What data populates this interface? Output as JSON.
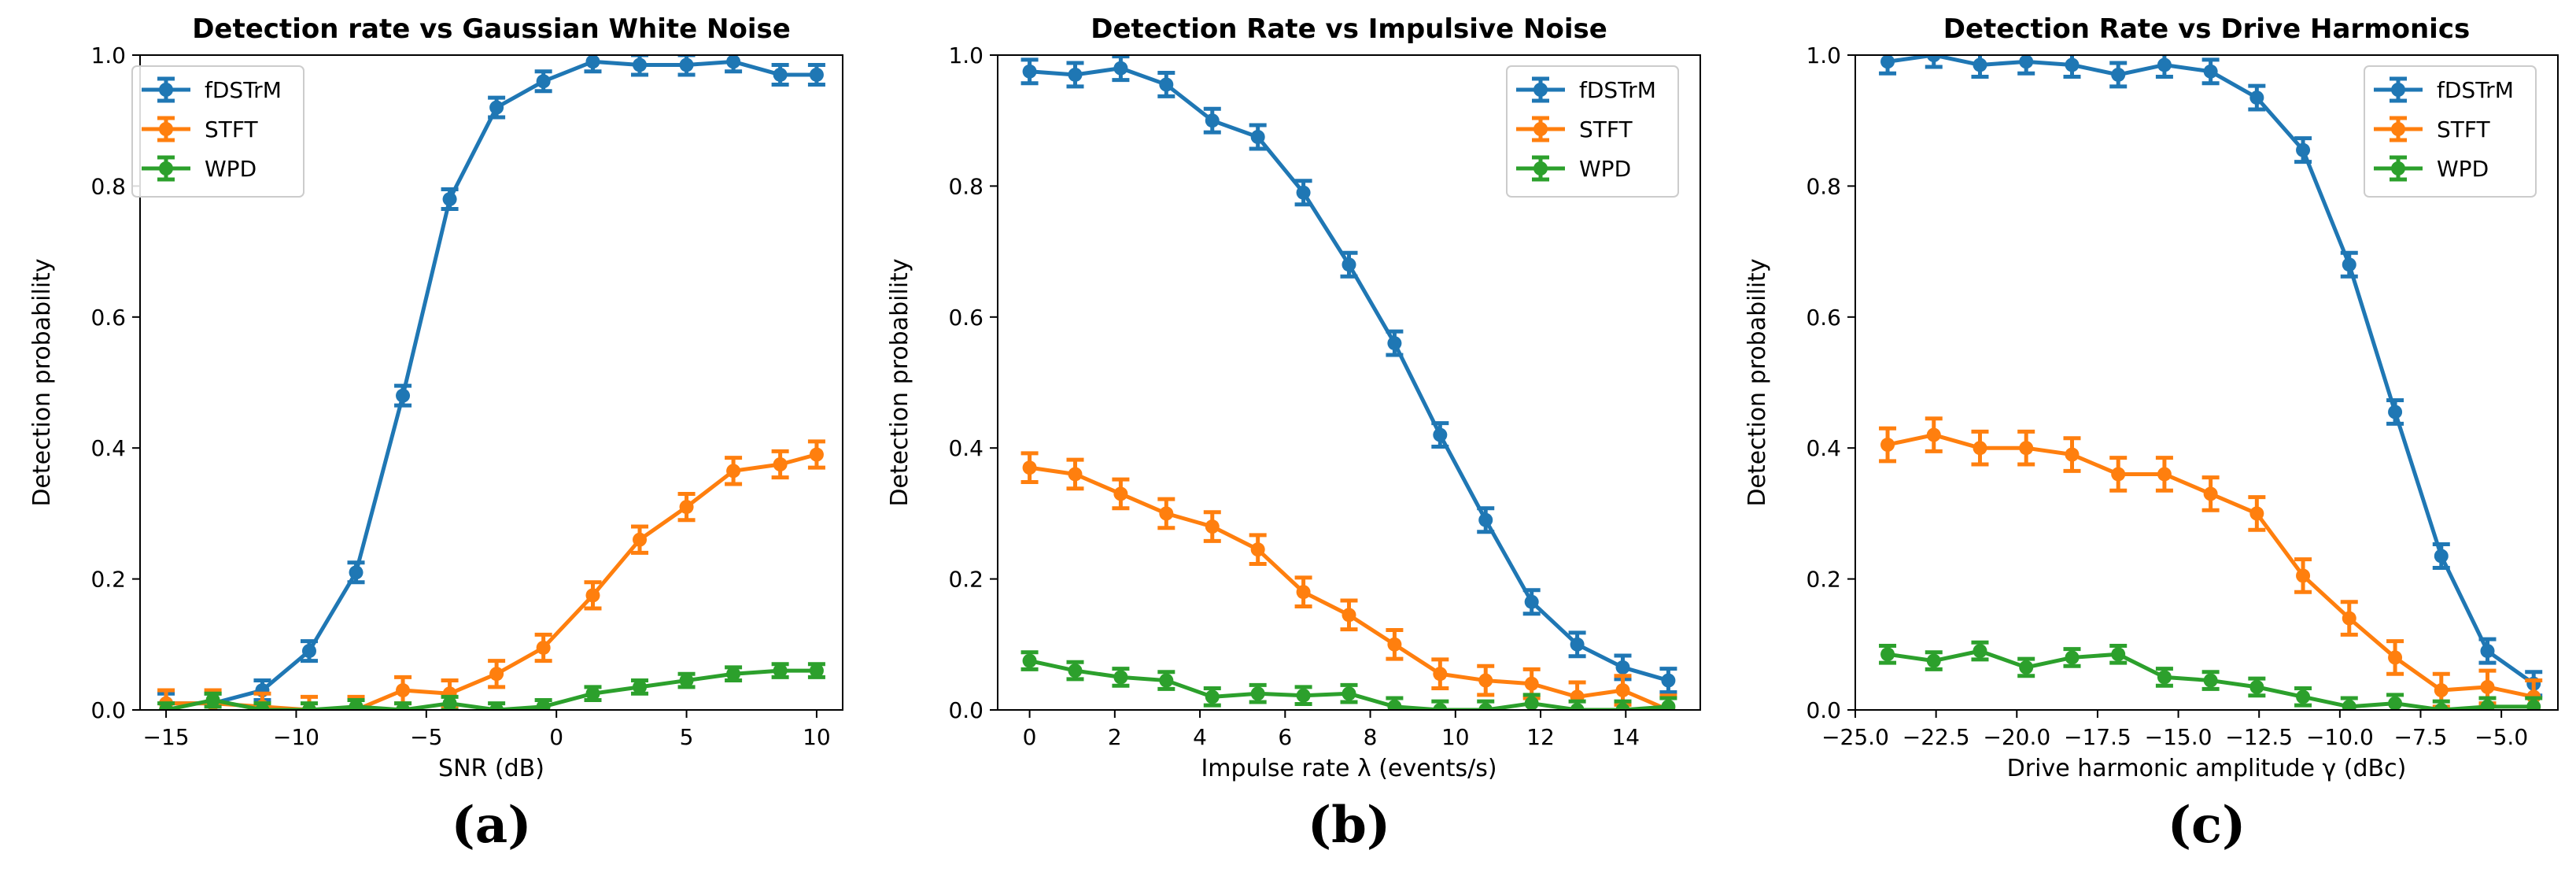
{
  "colors": {
    "fDSTrM": "#1f77b4",
    "STFT": "#ff7f0e",
    "WPD": "#2ca02c"
  },
  "chart_data": [
    {
      "type": "line",
      "panel_label": "(a)",
      "title": "Detection rate vs Gaussian White Noise",
      "xlabel": "SNR (dB)",
      "ylabel": "Detection probability",
      "xlim": [
        -16,
        11
      ],
      "ylim": [
        0,
        1.0
      ],
      "xticks": [
        -15,
        -10,
        -5,
        0,
        5,
        10
      ],
      "xtick_labels": [
        "−15",
        "−10",
        "−5",
        "0",
        "5",
        "10"
      ],
      "yticks": [
        0,
        0.2,
        0.4,
        0.6,
        0.8,
        1.0
      ],
      "ytick_labels": [
        "0.0",
        "0.2",
        "0.4",
        "0.6",
        "0.8",
        "1.0"
      ],
      "legend": "top-left",
      "x": [
        -15,
        -13.2,
        -11.3,
        -9.5,
        -7.7,
        -5.9,
        -4.1,
        -2.3,
        -0.5,
        1.4,
        3.2,
        5.0,
        6.8,
        8.6,
        10
      ],
      "series": [
        {
          "name": "fDSTrM",
          "values": [
            0.01,
            0.01,
            0.03,
            0.09,
            0.21,
            0.48,
            0.78,
            0.92,
            0.96,
            0.99,
            0.985,
            0.985,
            0.99,
            0.97,
            0.97
          ],
          "error": 0.015
        },
        {
          "name": "STFT",
          "values": [
            0.01,
            0.01,
            0.005,
            0.0,
            0.0,
            0.03,
            0.025,
            0.055,
            0.095,
            0.175,
            0.26,
            0.31,
            0.365,
            0.375,
            0.39
          ],
          "error": 0.02
        },
        {
          "name": "WPD",
          "values": [
            0.0,
            0.015,
            0.0,
            0.0,
            0.005,
            0.0,
            0.01,
            0.0,
            0.005,
            0.025,
            0.035,
            0.045,
            0.055,
            0.06,
            0.06
          ],
          "error": 0.01
        }
      ]
    },
    {
      "type": "line",
      "panel_label": "(b)",
      "title": "Detection Rate vs Impulsive Noise",
      "xlabel": "Impulse rate λ (events/s)",
      "ylabel": "Detection probability",
      "xlim": [
        -0.75,
        15.75
      ],
      "ylim": [
        0,
        1.0
      ],
      "xticks": [
        0,
        2,
        4,
        6,
        8,
        10,
        12,
        14
      ],
      "xtick_labels": [
        "0",
        "2",
        "4",
        "6",
        "8",
        "10",
        "12",
        "14"
      ],
      "yticks": [
        0,
        0.2,
        0.4,
        0.6,
        0.8,
        1.0
      ],
      "ytick_labels": [
        "0.0",
        "0.2",
        "0.4",
        "0.6",
        "0.8",
        "1.0"
      ],
      "legend": "top-right",
      "x": [
        0,
        1.07,
        2.14,
        3.21,
        4.29,
        5.36,
        6.43,
        7.5,
        8.57,
        9.64,
        10.71,
        11.79,
        12.86,
        13.93,
        15
      ],
      "series": [
        {
          "name": "fDSTrM",
          "values": [
            0.975,
            0.97,
            0.98,
            0.955,
            0.9,
            0.875,
            0.79,
            0.68,
            0.56,
            0.42,
            0.29,
            0.165,
            0.1,
            0.065,
            0.045
          ],
          "error": 0.018
        },
        {
          "name": "STFT",
          "values": [
            0.37,
            0.36,
            0.33,
            0.3,
            0.28,
            0.245,
            0.18,
            0.145,
            0.1,
            0.055,
            0.045,
            0.04,
            0.02,
            0.03,
            0.0
          ],
          "error": 0.022
        },
        {
          "name": "WPD",
          "values": [
            0.075,
            0.06,
            0.05,
            0.045,
            0.02,
            0.025,
            0.022,
            0.025,
            0.005,
            0.0,
            0.0,
            0.01,
            0.0,
            0.0,
            0.005
          ],
          "error": 0.013
        }
      ]
    },
    {
      "type": "line",
      "panel_label": "(c)",
      "title": "Detection Rate vs Drive Harmonics",
      "xlabel": "Drive harmonic amplitude γ (dBc)",
      "ylabel": "Detection probability",
      "xlim": [
        -25,
        -3.25
      ],
      "ylim": [
        0,
        1.0
      ],
      "xticks": [
        -25,
        -22.5,
        -20,
        -17.5,
        -15,
        -12.5,
        -10,
        -7.5,
        -5
      ],
      "xtick_labels": [
        "−25.0",
        "−22.5",
        "−20.0",
        "−17.5",
        "−15.0",
        "−12.5",
        "−10.0",
        "−7.5",
        "−5.0"
      ],
      "yticks": [
        0,
        0.2,
        0.4,
        0.6,
        0.8,
        1.0
      ],
      "ytick_labels": [
        "0.0",
        "0.2",
        "0.4",
        "0.6",
        "0.8",
        "1.0"
      ],
      "legend": "top-right",
      "x": [
        -24,
        -22.57,
        -21.14,
        -19.71,
        -18.29,
        -16.86,
        -15.43,
        -14,
        -12.57,
        -11.14,
        -9.71,
        -8.29,
        -6.86,
        -5.43,
        -4
      ],
      "series": [
        {
          "name": "fDSTrM",
          "values": [
            0.99,
            1.0,
            0.985,
            0.99,
            0.985,
            0.97,
            0.985,
            0.975,
            0.935,
            0.855,
            0.68,
            0.455,
            0.235,
            0.09,
            0.04
          ],
          "error": 0.018
        },
        {
          "name": "STFT",
          "values": [
            0.405,
            0.42,
            0.4,
            0.4,
            0.39,
            0.36,
            0.36,
            0.33,
            0.3,
            0.205,
            0.14,
            0.08,
            0.03,
            0.035,
            0.02
          ],
          "error": 0.025
        },
        {
          "name": "WPD",
          "values": [
            0.085,
            0.075,
            0.09,
            0.065,
            0.08,
            0.085,
            0.05,
            0.045,
            0.035,
            0.02,
            0.005,
            0.01,
            0.0,
            0.005,
            0.005
          ],
          "error": 0.013
        }
      ]
    }
  ]
}
